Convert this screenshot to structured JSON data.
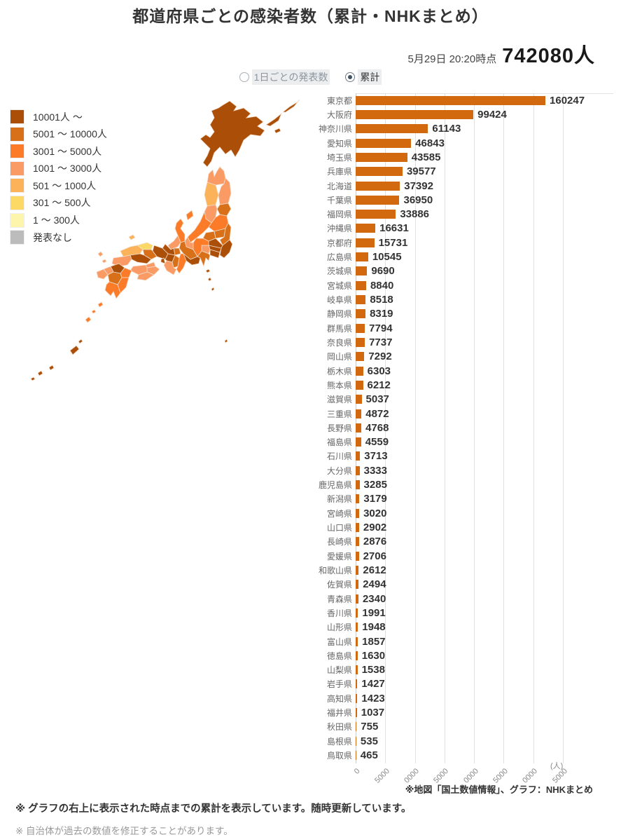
{
  "page": {
    "title": "都道府県ごとの感染者数（累計・NHKまとめ）"
  },
  "header": {
    "datetime": "5月29日 20:20時点",
    "total": "742080人"
  },
  "controls": {
    "radio_daily_label": "1日ごとの発表数",
    "radio_cumulative_label": "累計",
    "selected": "累計"
  },
  "legend": {
    "items": [
      {
        "label": "10001人 ～",
        "color": "#ab4e08"
      },
      {
        "label": "5001 ～ 10000人",
        "color": "#d8701a"
      },
      {
        "label": "3001 ～ 5000人",
        "color": "#fc7b29"
      },
      {
        "label": "1001 ～ 3000人",
        "color": "#fa9b66"
      },
      {
        "label": "501 ～ 1000人",
        "color": "#fbb259"
      },
      {
        "label": "301 ～ 500人",
        "color": "#fbd964"
      },
      {
        "label": "1 ～ 300人",
        "color": "#fdf5ab"
      },
      {
        "label": "発表なし",
        "color": "#bcbcbc"
      }
    ]
  },
  "chart_data": {
    "type": "bar",
    "orientation": "horizontal",
    "title": "都道府県ごとの感染者数（累計・NHKまとめ）",
    "unit_label": "(人)",
    "categories": [
      "東京都",
      "大阪府",
      "神奈川県",
      "愛知県",
      "埼玉県",
      "兵庫県",
      "北海道",
      "千葉県",
      "福岡県",
      "沖縄県",
      "京都府",
      "広島県",
      "茨城県",
      "宮城県",
      "岐阜県",
      "静岡県",
      "群馬県",
      "奈良県",
      "岡山県",
      "栃木県",
      "熊本県",
      "滋賀県",
      "三重県",
      "長野県",
      "福島県",
      "石川県",
      "大分県",
      "鹿児島県",
      "新潟県",
      "宮崎県",
      "山口県",
      "長崎県",
      "愛媛県",
      "和歌山県",
      "佐賀県",
      "青森県",
      "香川県",
      "山形県",
      "富山県",
      "徳島県",
      "山梨県",
      "岩手県",
      "高知県",
      "福井県",
      "秋田県",
      "島根県",
      "鳥取県"
    ],
    "values": [
      160247,
      99424,
      61143,
      46843,
      43585,
      39577,
      37392,
      36950,
      33886,
      16631,
      15731,
      10545,
      9690,
      8840,
      8518,
      8319,
      7794,
      7737,
      7292,
      6303,
      6212,
      5037,
      4872,
      4768,
      4559,
      3713,
      3333,
      3285,
      3179,
      3020,
      2902,
      2876,
      2706,
      2612,
      2494,
      2340,
      1991,
      1948,
      1857,
      1630,
      1538,
      1427,
      1423,
      1037,
      755,
      535,
      465
    ],
    "xlim": [
      0,
      175000
    ],
    "xticks": [
      0,
      25000,
      50000,
      75000,
      100000,
      125000,
      150000,
      175000
    ],
    "xtick_labels_visible": [
      "0",
      "5000",
      "0000",
      "5000",
      "0000",
      "5000",
      "0000",
      "5000"
    ],
    "grid": true,
    "bar_color": "#d2690e",
    "legend_position": "left"
  },
  "map": {
    "palette": {
      "L10001": "#ab4e08",
      "L5001": "#d8701a",
      "L3001": "#fc7b29",
      "L1001": "#fa9b66",
      "L501": "#fbb259",
      "L301": "#fbd964",
      "L1": "#fdf5ab",
      "none": "#bcbcbc"
    },
    "prefecture_levels": {
      "hokkaido": "L10001",
      "tokyo": "L10001",
      "kanagawa": "L10001",
      "saitama": "L10001",
      "chiba": "L10001",
      "aichi": "L10001",
      "osaka": "L10001",
      "hyogo": "L10001",
      "kyoto": "L10001",
      "fukuoka": "L10001",
      "okinawa": "L10001",
      "hiroshima": "L10001",
      "ibaraki": "L5001",
      "miyagi": "L5001",
      "gifu": "L5001",
      "shizuoka": "L5001",
      "gunma": "L5001",
      "nara": "L5001",
      "okayama": "L5001",
      "tochigi": "L5001",
      "kumamoto": "L5001",
      "shiga": "L5001",
      "mie": "L3001",
      "nagano": "L3001",
      "fukushima": "L3001",
      "ishikawa": "L3001",
      "oita": "L3001",
      "kagoshima": "L3001",
      "niigata": "L3001",
      "miyazaki": "L3001",
      "yamaguchi": "L1001",
      "nagasaki": "L1001",
      "ehime": "L1001",
      "wakayama": "L1001",
      "saga": "L1001",
      "aomori": "L1001",
      "kagawa": "L1001",
      "yamagata": "L1001",
      "toyama": "L1001",
      "tokushima": "L1001",
      "yamanashi": "L1001",
      "iwate": "L1001",
      "kochi": "L1001",
      "fukui": "L1001",
      "akita": "L501",
      "shimane": "L501",
      "tottori": "L301"
    }
  },
  "notes": {
    "source": "※地図「国土数値情報」、グラフ：NHKまとめ",
    "note1": "※ グラフの右上に表示された時点までの累計を表示しています。随時更新しています。",
    "note2": "※ 自治体が過去の数値を修正することがあります。"
  }
}
